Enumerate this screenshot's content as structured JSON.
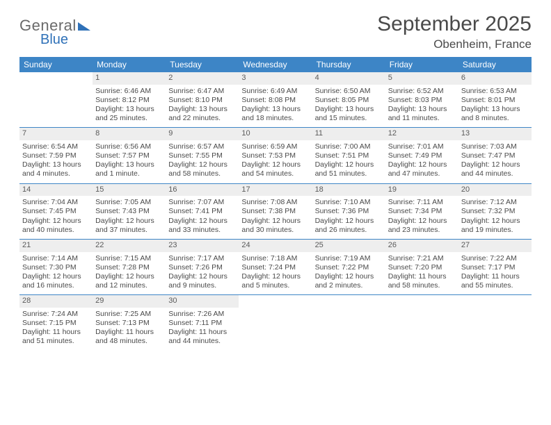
{
  "logo": {
    "line1": "General",
    "line2": "Blue"
  },
  "title": "September 2025",
  "location": "Obenheim, France",
  "colors": {
    "header_bg": "#3d85c6",
    "header_text": "#ffffff",
    "daynum_bg": "#eeeeee",
    "border": "#3d85c6",
    "body_text": "#4a4a4a",
    "logo_accent": "#2f71b8",
    "page_bg": "#ffffff"
  },
  "typography": {
    "title_fontsize": 30,
    "location_fontsize": 17,
    "dayhead_fontsize": 12,
    "cell_fontsize": 10.5,
    "daynum_fontsize": 11
  },
  "day_headers": [
    "Sunday",
    "Monday",
    "Tuesday",
    "Wednesday",
    "Thursday",
    "Friday",
    "Saturday"
  ],
  "weeks": [
    [
      {
        "empty": true
      },
      {
        "day": "1",
        "sunrise": "Sunrise: 6:46 AM",
        "sunset": "Sunset: 8:12 PM",
        "daylight1": "Daylight: 13 hours",
        "daylight2": "and 25 minutes."
      },
      {
        "day": "2",
        "sunrise": "Sunrise: 6:47 AM",
        "sunset": "Sunset: 8:10 PM",
        "daylight1": "Daylight: 13 hours",
        "daylight2": "and 22 minutes."
      },
      {
        "day": "3",
        "sunrise": "Sunrise: 6:49 AM",
        "sunset": "Sunset: 8:08 PM",
        "daylight1": "Daylight: 13 hours",
        "daylight2": "and 18 minutes."
      },
      {
        "day": "4",
        "sunrise": "Sunrise: 6:50 AM",
        "sunset": "Sunset: 8:05 PM",
        "daylight1": "Daylight: 13 hours",
        "daylight2": "and 15 minutes."
      },
      {
        "day": "5",
        "sunrise": "Sunrise: 6:52 AM",
        "sunset": "Sunset: 8:03 PM",
        "daylight1": "Daylight: 13 hours",
        "daylight2": "and 11 minutes."
      },
      {
        "day": "6",
        "sunrise": "Sunrise: 6:53 AM",
        "sunset": "Sunset: 8:01 PM",
        "daylight1": "Daylight: 13 hours",
        "daylight2": "and 8 minutes."
      }
    ],
    [
      {
        "day": "7",
        "sunrise": "Sunrise: 6:54 AM",
        "sunset": "Sunset: 7:59 PM",
        "daylight1": "Daylight: 13 hours",
        "daylight2": "and 4 minutes."
      },
      {
        "day": "8",
        "sunrise": "Sunrise: 6:56 AM",
        "sunset": "Sunset: 7:57 PM",
        "daylight1": "Daylight: 13 hours",
        "daylight2": "and 1 minute."
      },
      {
        "day": "9",
        "sunrise": "Sunrise: 6:57 AM",
        "sunset": "Sunset: 7:55 PM",
        "daylight1": "Daylight: 12 hours",
        "daylight2": "and 58 minutes."
      },
      {
        "day": "10",
        "sunrise": "Sunrise: 6:59 AM",
        "sunset": "Sunset: 7:53 PM",
        "daylight1": "Daylight: 12 hours",
        "daylight2": "and 54 minutes."
      },
      {
        "day": "11",
        "sunrise": "Sunrise: 7:00 AM",
        "sunset": "Sunset: 7:51 PM",
        "daylight1": "Daylight: 12 hours",
        "daylight2": "and 51 minutes."
      },
      {
        "day": "12",
        "sunrise": "Sunrise: 7:01 AM",
        "sunset": "Sunset: 7:49 PM",
        "daylight1": "Daylight: 12 hours",
        "daylight2": "and 47 minutes."
      },
      {
        "day": "13",
        "sunrise": "Sunrise: 7:03 AM",
        "sunset": "Sunset: 7:47 PM",
        "daylight1": "Daylight: 12 hours",
        "daylight2": "and 44 minutes."
      }
    ],
    [
      {
        "day": "14",
        "sunrise": "Sunrise: 7:04 AM",
        "sunset": "Sunset: 7:45 PM",
        "daylight1": "Daylight: 12 hours",
        "daylight2": "and 40 minutes."
      },
      {
        "day": "15",
        "sunrise": "Sunrise: 7:05 AM",
        "sunset": "Sunset: 7:43 PM",
        "daylight1": "Daylight: 12 hours",
        "daylight2": "and 37 minutes."
      },
      {
        "day": "16",
        "sunrise": "Sunrise: 7:07 AM",
        "sunset": "Sunset: 7:41 PM",
        "daylight1": "Daylight: 12 hours",
        "daylight2": "and 33 minutes."
      },
      {
        "day": "17",
        "sunrise": "Sunrise: 7:08 AM",
        "sunset": "Sunset: 7:38 PM",
        "daylight1": "Daylight: 12 hours",
        "daylight2": "and 30 minutes."
      },
      {
        "day": "18",
        "sunrise": "Sunrise: 7:10 AM",
        "sunset": "Sunset: 7:36 PM",
        "daylight1": "Daylight: 12 hours",
        "daylight2": "and 26 minutes."
      },
      {
        "day": "19",
        "sunrise": "Sunrise: 7:11 AM",
        "sunset": "Sunset: 7:34 PM",
        "daylight1": "Daylight: 12 hours",
        "daylight2": "and 23 minutes."
      },
      {
        "day": "20",
        "sunrise": "Sunrise: 7:12 AM",
        "sunset": "Sunset: 7:32 PM",
        "daylight1": "Daylight: 12 hours",
        "daylight2": "and 19 minutes."
      }
    ],
    [
      {
        "day": "21",
        "sunrise": "Sunrise: 7:14 AM",
        "sunset": "Sunset: 7:30 PM",
        "daylight1": "Daylight: 12 hours",
        "daylight2": "and 16 minutes."
      },
      {
        "day": "22",
        "sunrise": "Sunrise: 7:15 AM",
        "sunset": "Sunset: 7:28 PM",
        "daylight1": "Daylight: 12 hours",
        "daylight2": "and 12 minutes."
      },
      {
        "day": "23",
        "sunrise": "Sunrise: 7:17 AM",
        "sunset": "Sunset: 7:26 PM",
        "daylight1": "Daylight: 12 hours",
        "daylight2": "and 9 minutes."
      },
      {
        "day": "24",
        "sunrise": "Sunrise: 7:18 AM",
        "sunset": "Sunset: 7:24 PM",
        "daylight1": "Daylight: 12 hours",
        "daylight2": "and 5 minutes."
      },
      {
        "day": "25",
        "sunrise": "Sunrise: 7:19 AM",
        "sunset": "Sunset: 7:22 PM",
        "daylight1": "Daylight: 12 hours",
        "daylight2": "and 2 minutes."
      },
      {
        "day": "26",
        "sunrise": "Sunrise: 7:21 AM",
        "sunset": "Sunset: 7:20 PM",
        "daylight1": "Daylight: 11 hours",
        "daylight2": "and 58 minutes."
      },
      {
        "day": "27",
        "sunrise": "Sunrise: 7:22 AM",
        "sunset": "Sunset: 7:17 PM",
        "daylight1": "Daylight: 11 hours",
        "daylight2": "and 55 minutes."
      }
    ],
    [
      {
        "day": "28",
        "sunrise": "Sunrise: 7:24 AM",
        "sunset": "Sunset: 7:15 PM",
        "daylight1": "Daylight: 11 hours",
        "daylight2": "and 51 minutes."
      },
      {
        "day": "29",
        "sunrise": "Sunrise: 7:25 AM",
        "sunset": "Sunset: 7:13 PM",
        "daylight1": "Daylight: 11 hours",
        "daylight2": "and 48 minutes."
      },
      {
        "day": "30",
        "sunrise": "Sunrise: 7:26 AM",
        "sunset": "Sunset: 7:11 PM",
        "daylight1": "Daylight: 11 hours",
        "daylight2": "and 44 minutes."
      },
      {
        "empty": true
      },
      {
        "empty": true
      },
      {
        "empty": true
      },
      {
        "empty": true
      }
    ]
  ]
}
